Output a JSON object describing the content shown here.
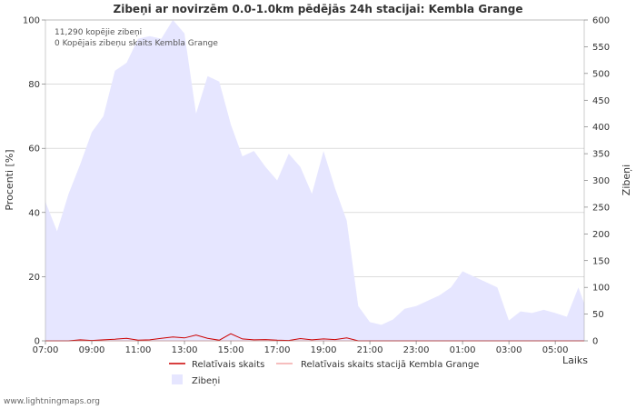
{
  "chart_data": {
    "type": "area",
    "title": "Zibeņi ar novirzēm 0.0-1.0km pēdējās 24h stacijai: Kembla Grange",
    "ylabel_left": "Procenti   [%]",
    "ylabel_right": "Zibeņi",
    "xlabel": "Laiks",
    "left_axis": {
      "ylim": [
        0,
        100
      ],
      "ticks": [
        0,
        20,
        40,
        60,
        80,
        100
      ]
    },
    "right_axis": {
      "ylim": [
        0,
        600
      ],
      "ticks": [
        0,
        50,
        100,
        150,
        200,
        250,
        300,
        350,
        400,
        450,
        500,
        550,
        600
      ]
    },
    "x_range": [
      7.0,
      30.25
    ],
    "x_ticks": [
      {
        "value": 7,
        "label": "07:00"
      },
      {
        "value": 9,
        "label": "09:00"
      },
      {
        "value": 11,
        "label": "11:00"
      },
      {
        "value": 13,
        "label": "13:00"
      },
      {
        "value": 15,
        "label": "15:00"
      },
      {
        "value": 17,
        "label": "17:00"
      },
      {
        "value": 19,
        "label": "19:00"
      },
      {
        "value": 21,
        "label": "21:00"
      },
      {
        "value": 23,
        "label": "23:00"
      },
      {
        "value": 25,
        "label": "01:00"
      },
      {
        "value": 27,
        "label": "03:00"
      },
      {
        "value": 29,
        "label": "05:00"
      }
    ],
    "annotations": [
      "11,290 kopējie zibeņi",
      "0 Kopējais zibeņu skaits Kembla Grange"
    ],
    "series": [
      {
        "name": "Zibeņi",
        "axis": "right",
        "color": "#e6e6ff",
        "x": [
          7.0,
          7.5,
          8.0,
          8.5,
          9.0,
          9.5,
          10.0,
          10.5,
          11.0,
          11.5,
          12.0,
          12.5,
          13.0,
          13.5,
          14.0,
          14.5,
          15.0,
          15.5,
          16.0,
          16.5,
          17.0,
          17.5,
          18.0,
          18.5,
          19.0,
          19.5,
          20.0,
          20.5,
          21.0,
          21.5,
          22.0,
          22.5,
          23.0,
          23.5,
          24.0,
          24.5,
          25.0,
          25.5,
          26.0,
          26.5,
          27.0,
          27.5,
          28.0,
          28.5,
          29.0,
          29.5,
          30.0,
          30.25
        ],
        "values": [
          260,
          205,
          275,
          330,
          390,
          420,
          505,
          520,
          565,
          570,
          565,
          600,
          575,
          425,
          495,
          485,
          405,
          345,
          355,
          325,
          300,
          350,
          325,
          275,
          355,
          285,
          225,
          65,
          35,
          30,
          40,
          60,
          65,
          75,
          85,
          100,
          130,
          120,
          110,
          100,
          38,
          55,
          52,
          58,
          52,
          45,
          100,
          70
        ]
      },
      {
        "name": "Relatīvais skaits",
        "axis": "left",
        "color": "#cc0000",
        "x": [
          7.0,
          7.5,
          8.0,
          8.5,
          9.0,
          9.5,
          10.0,
          10.5,
          11.0,
          11.5,
          12.0,
          12.5,
          13.0,
          13.5,
          14.0,
          14.5,
          15.0,
          15.5,
          16.0,
          16.5,
          17.0,
          17.5,
          18.0,
          18.5,
          19.0,
          19.5,
          20.0,
          20.5,
          21.0,
          21.5,
          22.0,
          22.5,
          23.0,
          23.5,
          24.0,
          24.5,
          25.0,
          25.5,
          26.0,
          26.5,
          27.0,
          27.5,
          28.0,
          28.5,
          29.0,
          29.5,
          30.0,
          30.25
        ],
        "values": [
          0,
          0,
          0,
          0.3,
          0.1,
          0.3,
          0.5,
          0.8,
          0.2,
          0.3,
          0.8,
          1.2,
          0.9,
          1.8,
          0.8,
          0.2,
          2.2,
          0.6,
          0.3,
          0.4,
          0.2,
          0.1,
          0.7,
          0.3,
          0.6,
          0.4,
          0.9,
          0,
          0,
          0,
          0,
          0,
          0,
          0,
          0,
          0,
          0,
          0,
          0,
          0,
          0,
          0,
          0,
          0,
          0,
          0,
          0,
          0
        ]
      },
      {
        "name": "Relatīvais skaits stacijā Kembla Grange",
        "axis": "left",
        "color": "#f4a8a8",
        "x": [
          7.0,
          30.25
        ],
        "values": [
          0,
          0
        ]
      }
    ],
    "legend": [
      {
        "label": "Relatīvais skaits",
        "kind": "line",
        "color": "#cc0000"
      },
      {
        "label": "Relatīvais skaits stacijā Kembla Grange",
        "kind": "line",
        "color": "#f4a8a8"
      },
      {
        "label": "Zibeņi",
        "kind": "box",
        "color": "#e6e6ff"
      }
    ]
  },
  "footer": "www.lightningmaps.org"
}
